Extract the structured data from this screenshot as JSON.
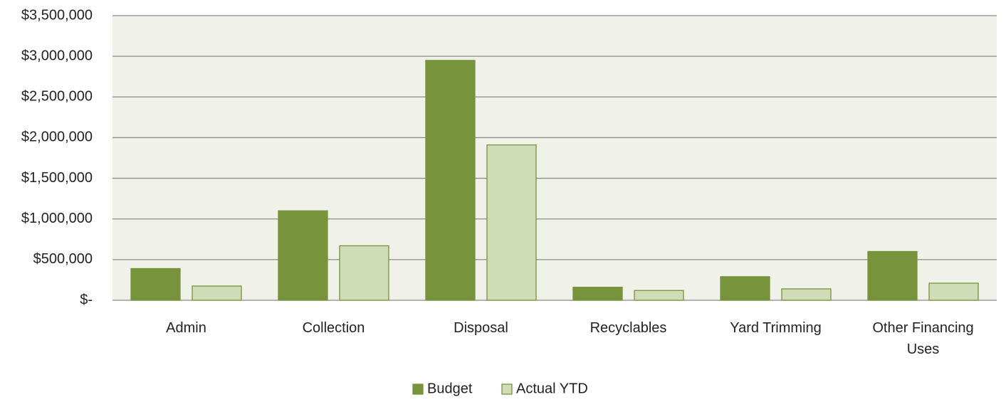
{
  "chart_data": {
    "type": "bar",
    "categories": [
      "Admin",
      "Collection",
      "Disposal",
      "Recyclables",
      "Yard Trimming",
      "Other Financing Uses"
    ],
    "series": [
      {
        "name": "Budget",
        "color": "#77933c",
        "values": [
          390000,
          1100000,
          2950000,
          160000,
          290000,
          600000
        ]
      },
      {
        "name": "Actual YTD",
        "color": "#d0dcb8",
        "values": [
          175000,
          670000,
          1910000,
          120000,
          140000,
          210000
        ]
      }
    ],
    "ylim": [
      0,
      3500000
    ],
    "yticks": [
      {
        "value": 0,
        "label": "$-"
      },
      {
        "value": 500000,
        "label": "$500,000"
      },
      {
        "value": 1000000,
        "label": "$1,000,000"
      },
      {
        "value": 1500000,
        "label": "$1,500,000"
      },
      {
        "value": 2000000,
        "label": "$2,000,000"
      },
      {
        "value": 2500000,
        "label": "$2,500,000"
      },
      {
        "value": 3000000,
        "label": "$3,000,000"
      },
      {
        "value": 3500000,
        "label": "$3,500,000"
      }
    ],
    "grid": true,
    "legend": "bottom"
  }
}
